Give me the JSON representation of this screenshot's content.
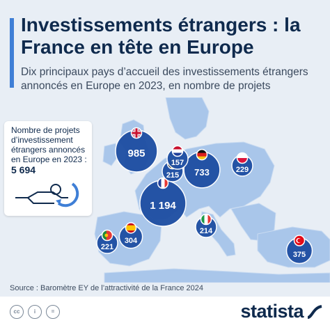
{
  "header": {
    "title": "Investissements étrangers : la France en tête en Europe",
    "subtitle": "Dix principaux pays d’accueil des investissements étrangers annoncés en Europe en 2023, en nombre de projets"
  },
  "callout": {
    "text": "Nombre de projets d’investissement étrangers annoncés en Europe en 2023 :",
    "value": "5 694"
  },
  "source": "Source : Baromètre EY de l’attractivité de la France 2024",
  "brand": "statista",
  "colors": {
    "background": "#e8eef5",
    "land": "#a9c6ea",
    "bubble": "#1f4fa3",
    "title": "#0f2a4d",
    "accent": "#3f7fd6"
  },
  "chart_data": {
    "type": "bubble-map",
    "title": "Investissements étrangers : la France en tête en Europe",
    "subtitle": "Dix principaux pays d’accueil des investissements étrangers annoncés en Europe en 2023, en nombre de projets",
    "unit": "projets",
    "points": [
      {
        "flag": "fr",
        "value": 1194,
        "label": "1 194"
      },
      {
        "flag": "uk",
        "value": 985,
        "label": "985"
      },
      {
        "flag": "de",
        "value": 733,
        "label": "733"
      },
      {
        "flag": "es",
        "value": 304,
        "label": "304"
      },
      {
        "flag": "tr",
        "value": 375,
        "label": "375"
      },
      {
        "flag": "pl",
        "value": 229,
        "label": "229"
      },
      {
        "flag": "pt",
        "value": 221,
        "label": "221"
      },
      {
        "flag": "be",
        "value": 215,
        "label": "215"
      },
      {
        "flag": "it",
        "value": 214,
        "label": "214"
      },
      {
        "flag": "nl",
        "value": 157,
        "label": "157"
      }
    ]
  }
}
